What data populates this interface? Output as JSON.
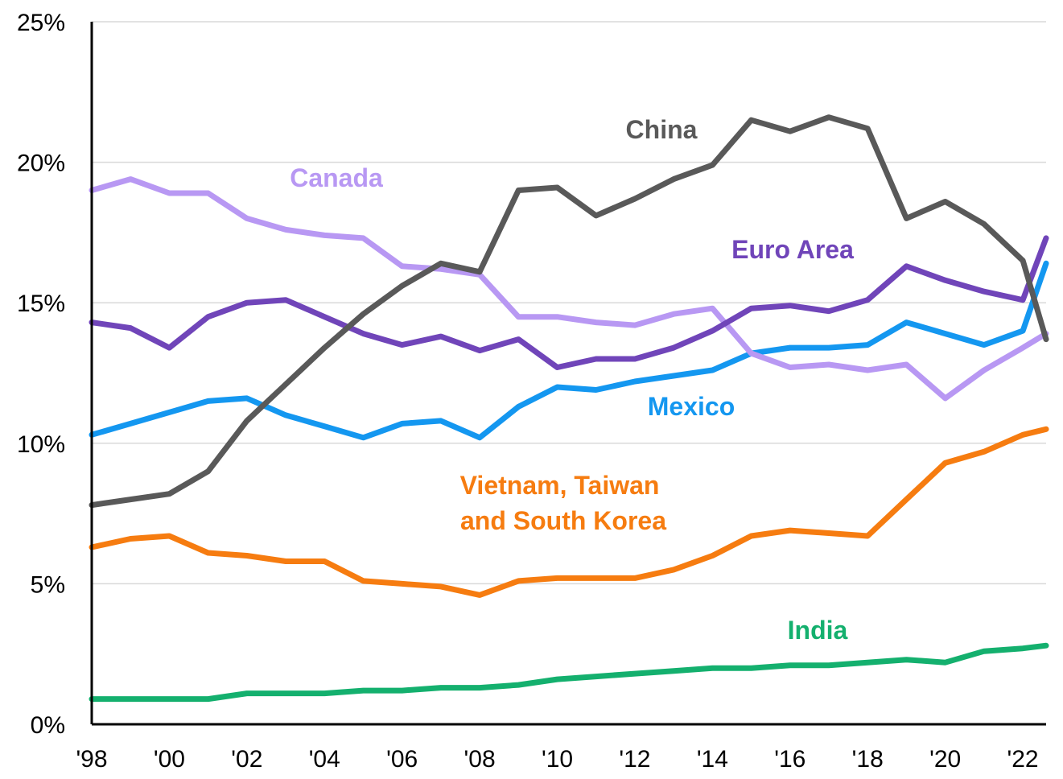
{
  "chart_data": {
    "type": "line",
    "title": "",
    "xlabel": "",
    "ylabel": "",
    "x": [
      1998,
      1999,
      2000,
      2001,
      2002,
      2003,
      2004,
      2005,
      2006,
      2007,
      2008,
      2009,
      2010,
      2011,
      2012,
      2013,
      2014,
      2015,
      2016,
      2017,
      2018,
      2019,
      2020,
      2021,
      2022,
      2022.6
    ],
    "xlim": [
      1998,
      2022.6
    ],
    "x_ticks": [
      1998,
      2000,
      2002,
      2004,
      2006,
      2008,
      2010,
      2012,
      2014,
      2016,
      2018,
      2020,
      2022
    ],
    "x_tick_labels": [
      "'98",
      "'00",
      "'02",
      "'04",
      "'06",
      "'08",
      "'10",
      "'12",
      "'14",
      "'16",
      "'18",
      "'20",
      "'22"
    ],
    "ylim": [
      0,
      25
    ],
    "y_ticks": [
      0,
      5,
      10,
      15,
      20,
      25
    ],
    "y_tick_labels": [
      "0%",
      "5%",
      "10%",
      "15%",
      "20%",
      "25%"
    ],
    "grid": "horizontal",
    "series": [
      {
        "name": "China",
        "color": "#595959",
        "values": [
          7.8,
          8.0,
          8.2,
          9.0,
          10.8,
          12.1,
          13.4,
          14.6,
          15.6,
          16.4,
          16.1,
          19.0,
          19.1,
          18.1,
          18.7,
          19.4,
          19.9,
          21.5,
          21.1,
          21.6,
          21.2,
          18.0,
          18.6,
          17.8,
          16.5,
          13.7
        ]
      },
      {
        "name": "Canada",
        "color": "#b898f3",
        "values": [
          19.0,
          19.4,
          18.9,
          18.9,
          18.0,
          17.6,
          17.4,
          17.3,
          16.3,
          16.2,
          16.0,
          14.5,
          14.5,
          14.3,
          14.2,
          14.6,
          14.8,
          13.2,
          12.7,
          12.8,
          12.6,
          12.8,
          11.6,
          12.6,
          13.4,
          13.9
        ]
      },
      {
        "name": "Euro Area",
        "color": "#7045b9",
        "values": [
          14.3,
          14.1,
          13.4,
          14.5,
          15.0,
          15.1,
          14.5,
          13.9,
          13.5,
          13.8,
          13.3,
          13.7,
          12.7,
          13.0,
          13.0,
          13.4,
          14.0,
          14.8,
          14.9,
          14.7,
          15.1,
          16.3,
          15.8,
          15.4,
          15.1,
          17.3
        ]
      },
      {
        "name": "Mexico",
        "color": "#1497f0",
        "values": [
          10.3,
          10.7,
          11.1,
          11.5,
          11.6,
          11.0,
          10.6,
          10.2,
          10.7,
          10.8,
          10.2,
          11.3,
          12.0,
          11.9,
          12.2,
          12.4,
          12.6,
          13.2,
          13.4,
          13.4,
          13.5,
          14.3,
          13.9,
          13.5,
          14.0,
          16.4
        ]
      },
      {
        "name": "Vietnam, Taiwan and South Korea",
        "color": "#f67c10",
        "values": [
          6.3,
          6.6,
          6.7,
          6.1,
          6.0,
          5.8,
          5.8,
          5.1,
          5.0,
          4.9,
          4.6,
          5.1,
          5.2,
          5.2,
          5.2,
          5.5,
          6.0,
          6.7,
          6.9,
          6.8,
          6.7,
          8.0,
          9.3,
          9.7,
          10.3,
          10.5
        ]
      },
      {
        "name": "India",
        "color": "#14b06e",
        "values": [
          0.9,
          0.9,
          0.9,
          0.9,
          1.1,
          1.1,
          1.1,
          1.2,
          1.2,
          1.3,
          1.3,
          1.4,
          1.6,
          1.7,
          1.8,
          1.9,
          2.0,
          2.0,
          2.1,
          2.1,
          2.2,
          2.3,
          2.2,
          2.6,
          2.7,
          2.8
        ]
      }
    ]
  }
}
